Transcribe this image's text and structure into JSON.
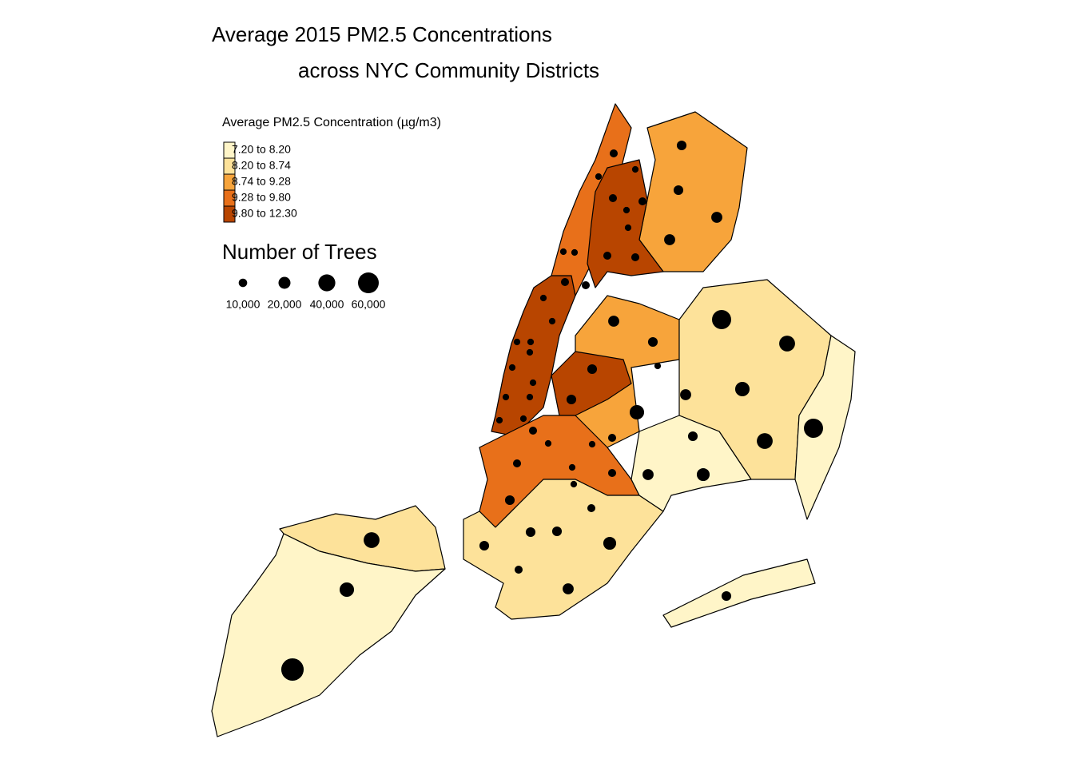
{
  "title": {
    "line1": "Average 2015 PM2.5 Concentrations",
    "line2": "across NYC Community Districts"
  },
  "color_legend": {
    "title": "Average PM2.5 Concentration (µg/m3)",
    "items": [
      {
        "label": "7.20 to 8.20",
        "color": "#fff5c8"
      },
      {
        "label": "8.20 to 8.74",
        "color": "#fde29a"
      },
      {
        "label": "8.74 to 9.28",
        "color": "#f7a43b"
      },
      {
        "label": "9.28 to 9.80",
        "color": "#e8701a"
      },
      {
        "label": "9.80 to 12.30",
        "color": "#b84500"
      }
    ]
  },
  "size_legend": {
    "title": "Number of Trees",
    "ticks": [
      {
        "value": 10000,
        "label": "10,000"
      },
      {
        "value": 20000,
        "label": "20,000"
      },
      {
        "value": 40000,
        "label": "40,000"
      },
      {
        "value": 60000,
        "label": "60,000"
      }
    ]
  },
  "districts": {
    "trees": [
      35000,
      29000,
      70000,
      51000,
      35000,
      29000,
      35000,
      51000,
      23000,
      13000,
      17000,
      13000,
      6000,
      29000,
      17000,
      13000,
      13000,
      13000,
      13000,
      17000,
      17000,
      6000,
      9000,
      6000,
      9000,
      6000,
      9000,
      9000,
      9000,
      6000,
      6000,
      6000,
      9000,
      9000,
      6000,
      6000,
      6000,
      6000,
      6000,
      6000,
      6000,
      6000,
      6000,
      6000,
      6000,
      13000,
      9000,
      6000,
      6000,
      9000,
      9000,
      6000,
      9000,
      6000,
      9000,
      17000,
      13000,
      13000,
      13000,
      13000,
      9000,
      17000,
      23000
    ]
  }
}
